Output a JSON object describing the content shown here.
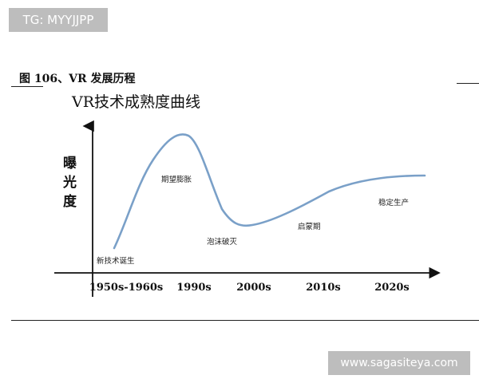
{
  "badge": {
    "text": "TG: MYYJJPP"
  },
  "figure": {
    "caption": "图 106、VR 发展历程"
  },
  "watermark": {
    "text": "www.sagasiteya.com"
  },
  "chart_data": {
    "type": "line",
    "title": "VR技术成熟度曲线",
    "xlabel": "",
    "ylabel": "曝光度",
    "categories": [
      "1950s-1960s",
      "1990s",
      "2000s",
      "2010s",
      "2020s"
    ],
    "annotations": [
      {
        "text": "新技术诞生"
      },
      {
        "text": "期望膨胀"
      },
      {
        "text": "泡沫破灭"
      },
      {
        "text": "启蒙期"
      },
      {
        "text": "稳定生产"
      }
    ],
    "curve_color": "#7aa0c8",
    "grid": false,
    "legend": "none"
  }
}
